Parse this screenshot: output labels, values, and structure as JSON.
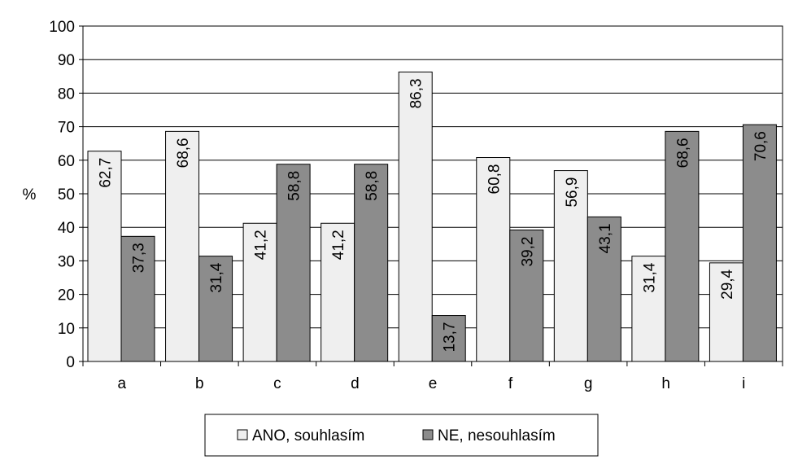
{
  "chart_data": {
    "type": "bar",
    "title": "",
    "xlabel": "",
    "ylabel": "%",
    "ylim": [
      0,
      100
    ],
    "yticks": [
      0,
      10,
      20,
      30,
      40,
      50,
      60,
      70,
      80,
      90,
      100
    ],
    "grid": true,
    "legend_position": "bottom",
    "categories": [
      "a",
      "b",
      "c",
      "d",
      "e",
      "f",
      "g",
      "h",
      "i"
    ],
    "series": [
      {
        "name": "ANO, souhlasím",
        "color": "#efefef",
        "values": [
          62.7,
          68.6,
          41.2,
          41.2,
          86.3,
          60.8,
          56.9,
          31.4,
          29.4
        ],
        "labels": [
          "62,7",
          "68,6",
          "41,2",
          "41,2",
          "86,3",
          "60,8",
          "56,9",
          "31,4",
          "29,4"
        ]
      },
      {
        "name": "NE, nesouhlasím",
        "color": "#8c8c8c",
        "values": [
          37.3,
          31.4,
          58.8,
          58.8,
          13.7,
          39.2,
          43.1,
          68.6,
          70.6
        ],
        "labels": [
          "37,3",
          "31,4",
          "58,8",
          "58,8",
          "13,7",
          "39,2",
          "43,1",
          "68,6",
          "70,6"
        ]
      }
    ]
  }
}
